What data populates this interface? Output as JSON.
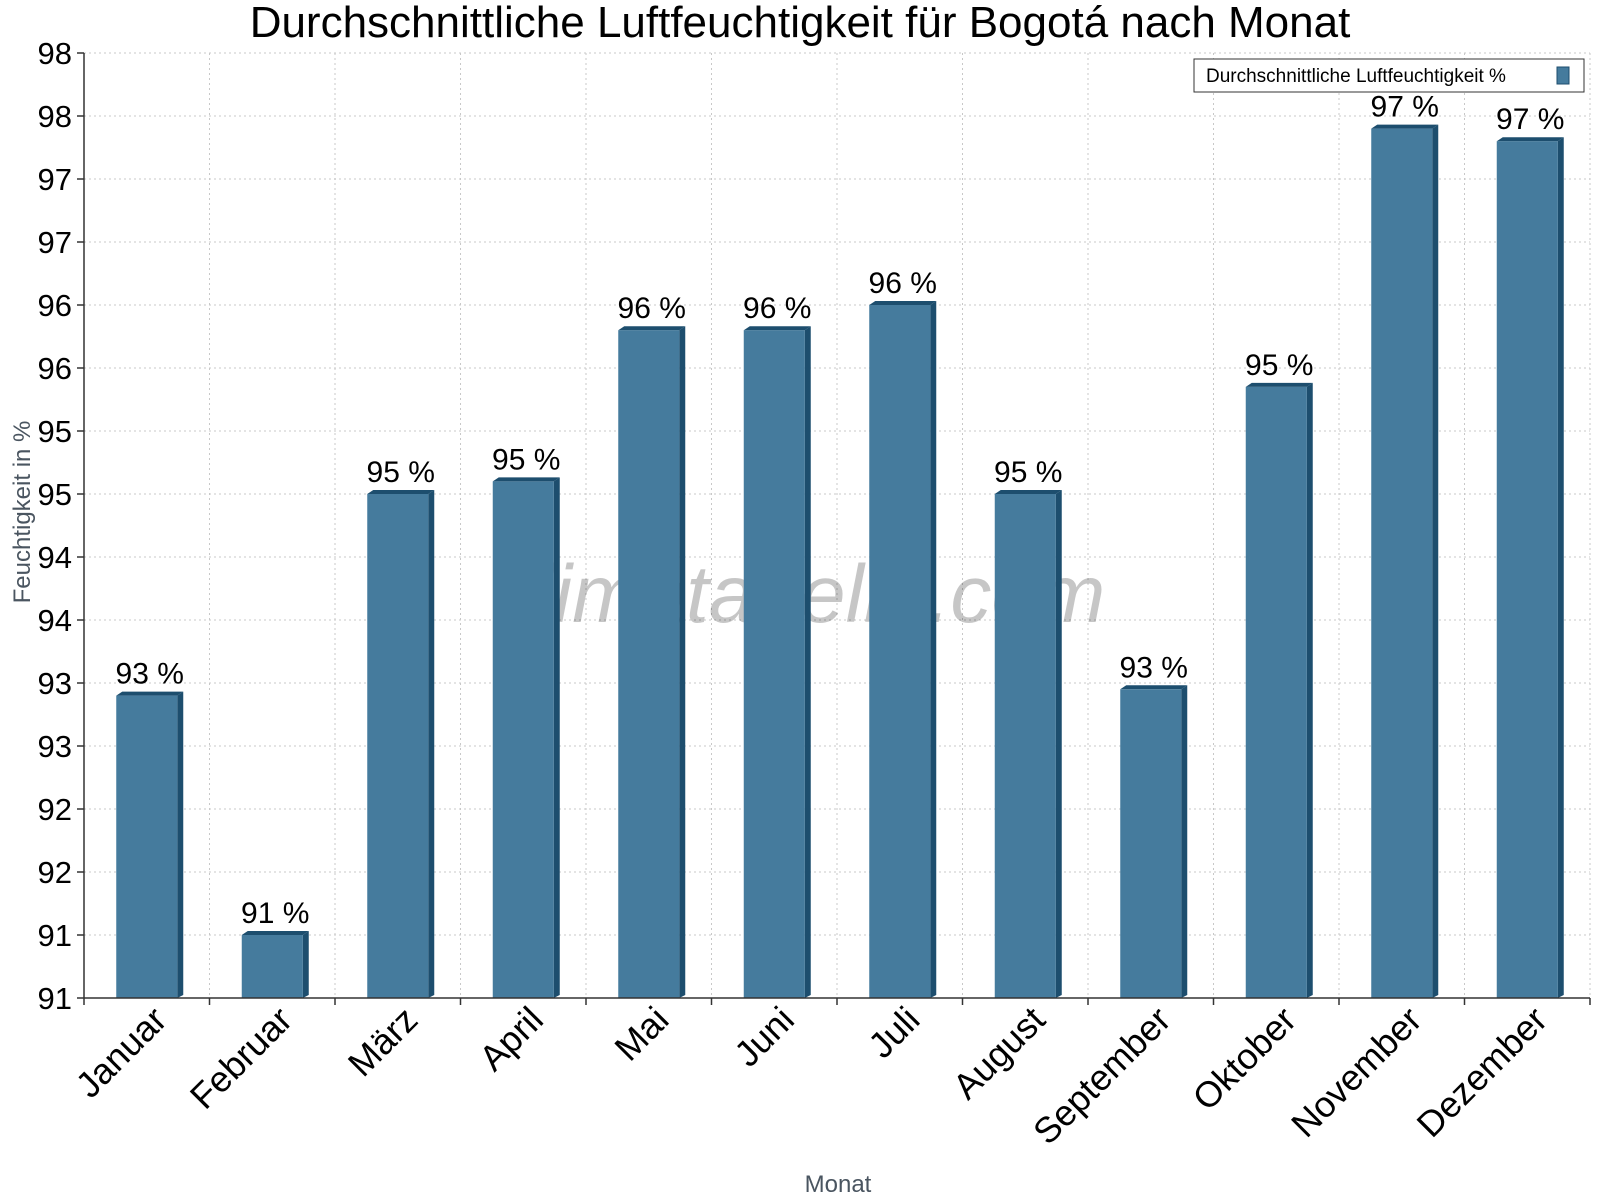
{
  "chart_data": {
    "type": "bar",
    "title": "Durchschnittliche Luftfeuchtigkeit für Bogotá nach Monat",
    "xlabel": "Monat",
    "ylabel": "Feuchtigkeit in %",
    "categories": [
      "Januar",
      "Februar",
      "März",
      "April",
      "Mai",
      "Juni",
      "Juli",
      "August",
      "September",
      "Oktober",
      "November",
      "Dezember"
    ],
    "series": [
      {
        "name": "Durchschnittliche Luftfeuchtigkeit %",
        "values": [
          92.9,
          91.0,
          94.5,
          94.6,
          95.8,
          95.8,
          96.0,
          94.5,
          92.95,
          95.35,
          97.4,
          97.3
        ],
        "labels": [
          "93 %",
          "91 %",
          "95 %",
          "95 %",
          "96 %",
          "96 %",
          "96 %",
          "95 %",
          "93 %",
          "95 %",
          "97 %",
          "97 %"
        ],
        "color": "#457b9d",
        "side_color": "#1d4e6e"
      }
    ],
    "ylim": [
      90.5,
      98.0
    ],
    "ytick_values": [
      90.5,
      91.0,
      91.5,
      92.0,
      92.5,
      93.0,
      93.5,
      94.0,
      94.5,
      95.0,
      95.5,
      96.0,
      96.5,
      97.0,
      97.5,
      98.0
    ],
    "ytick_labels": [
      "91",
      "91",
      "92",
      "92",
      "93",
      "93",
      "94",
      "94",
      "95",
      "95",
      "96",
      "96",
      "97",
      "97",
      "98",
      "98"
    ],
    "grid": true,
    "legend_position": "top-right",
    "watermark": "klimatabelle.com"
  }
}
